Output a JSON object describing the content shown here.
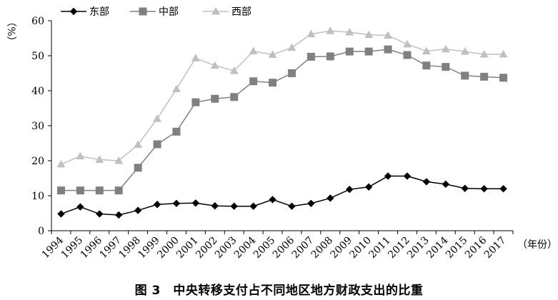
{
  "chart_data": {
    "type": "line",
    "title": "",
    "xlabel": "（年份）",
    "ylabel": "（%）",
    "ylim": [
      0,
      60
    ],
    "yticks": [
      0,
      10,
      20,
      30,
      40,
      50,
      60
    ],
    "grid": false,
    "legend_position": "top-left",
    "x": [
      "1994",
      "1995",
      "1996",
      "1997",
      "1998",
      "1999",
      "2000",
      "2001",
      "2002",
      "2003",
      "2004",
      "2005",
      "2006",
      "2007",
      "2008",
      "2009",
      "2010",
      "2011",
      "2012",
      "2013",
      "2014",
      "2015",
      "2016",
      "2017"
    ],
    "series": [
      {
        "name": "东部",
        "marker": "diamond",
        "color": "#000000",
        "values": [
          4.8,
          6.8,
          4.8,
          4.5,
          5.8,
          7.5,
          7.8,
          7.9,
          7.1,
          7.0,
          7.0,
          8.9,
          7.0,
          7.8,
          9.3,
          11.8,
          12.5,
          15.6,
          15.6,
          14.0,
          13.3,
          12.1,
          12.0,
          12.0
        ]
      },
      {
        "name": "中部",
        "marker": "square",
        "color": "#808080",
        "values": [
          11.5,
          11.5,
          11.5,
          11.5,
          18.0,
          24.7,
          28.3,
          36.7,
          37.7,
          38.2,
          42.7,
          42.3,
          45.0,
          49.7,
          49.8,
          51.2,
          51.2,
          51.8,
          50.2,
          47.2,
          46.8,
          44.3,
          44.0,
          43.7
        ]
      },
      {
        "name": "西部",
        "marker": "triangle",
        "color": "#c0c0c0",
        "values": [
          19.0,
          21.3,
          20.3,
          20.0,
          24.6,
          32.0,
          40.5,
          49.3,
          47.2,
          45.7,
          51.3,
          50.3,
          52.3,
          56.2,
          57.1,
          56.7,
          56.0,
          55.8,
          53.3,
          51.3,
          51.9,
          51.2,
          50.4,
          50.4
        ]
      }
    ]
  },
  "caption": "图 3　中央转移支付占不同地区地方财政支出的比重"
}
